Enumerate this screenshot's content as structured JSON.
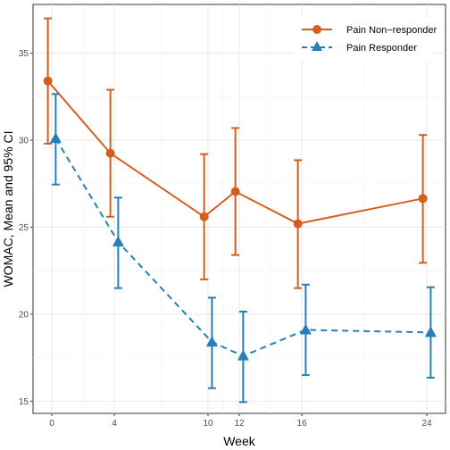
{
  "chart_data": {
    "type": "line",
    "xlabel": "Week",
    "ylabel": "WOMAC, Mean and 95% CI",
    "xlim": [
      -1.2,
      25.2
    ],
    "ylim": [
      14.3,
      37.8
    ],
    "x_ticks": [
      0,
      4,
      10,
      12,
      16,
      24
    ],
    "y_ticks": [
      15,
      20,
      25,
      30,
      35
    ],
    "grid": true,
    "legend_position": "top-right",
    "series": [
      {
        "name": "Pain Non−responder",
        "color": "#d55e1a",
        "marker": "circle",
        "line_style": "solid",
        "x": [
          0,
          4,
          10,
          12,
          16,
          24
        ],
        "y": [
          33.4,
          29.25,
          25.6,
          27.05,
          25.2,
          26.65
        ],
        "lower": [
          29.8,
          25.6,
          22.0,
          23.4,
          21.5,
          22.95
        ],
        "upper": [
          37.0,
          32.9,
          29.2,
          30.7,
          28.85,
          30.3
        ]
      },
      {
        "name": "Pain Responder",
        "color": "#2580b8",
        "marker": "triangle",
        "line_style": "dashed",
        "x": [
          0,
          4,
          10,
          12,
          16,
          24
        ],
        "y": [
          30.1,
          24.15,
          18.4,
          17.6,
          19.1,
          18.95
        ],
        "lower": [
          27.45,
          21.5,
          15.75,
          14.95,
          16.5,
          16.35
        ],
        "upper": [
          32.65,
          26.7,
          20.95,
          20.15,
          21.7,
          21.55
        ]
      }
    ]
  }
}
